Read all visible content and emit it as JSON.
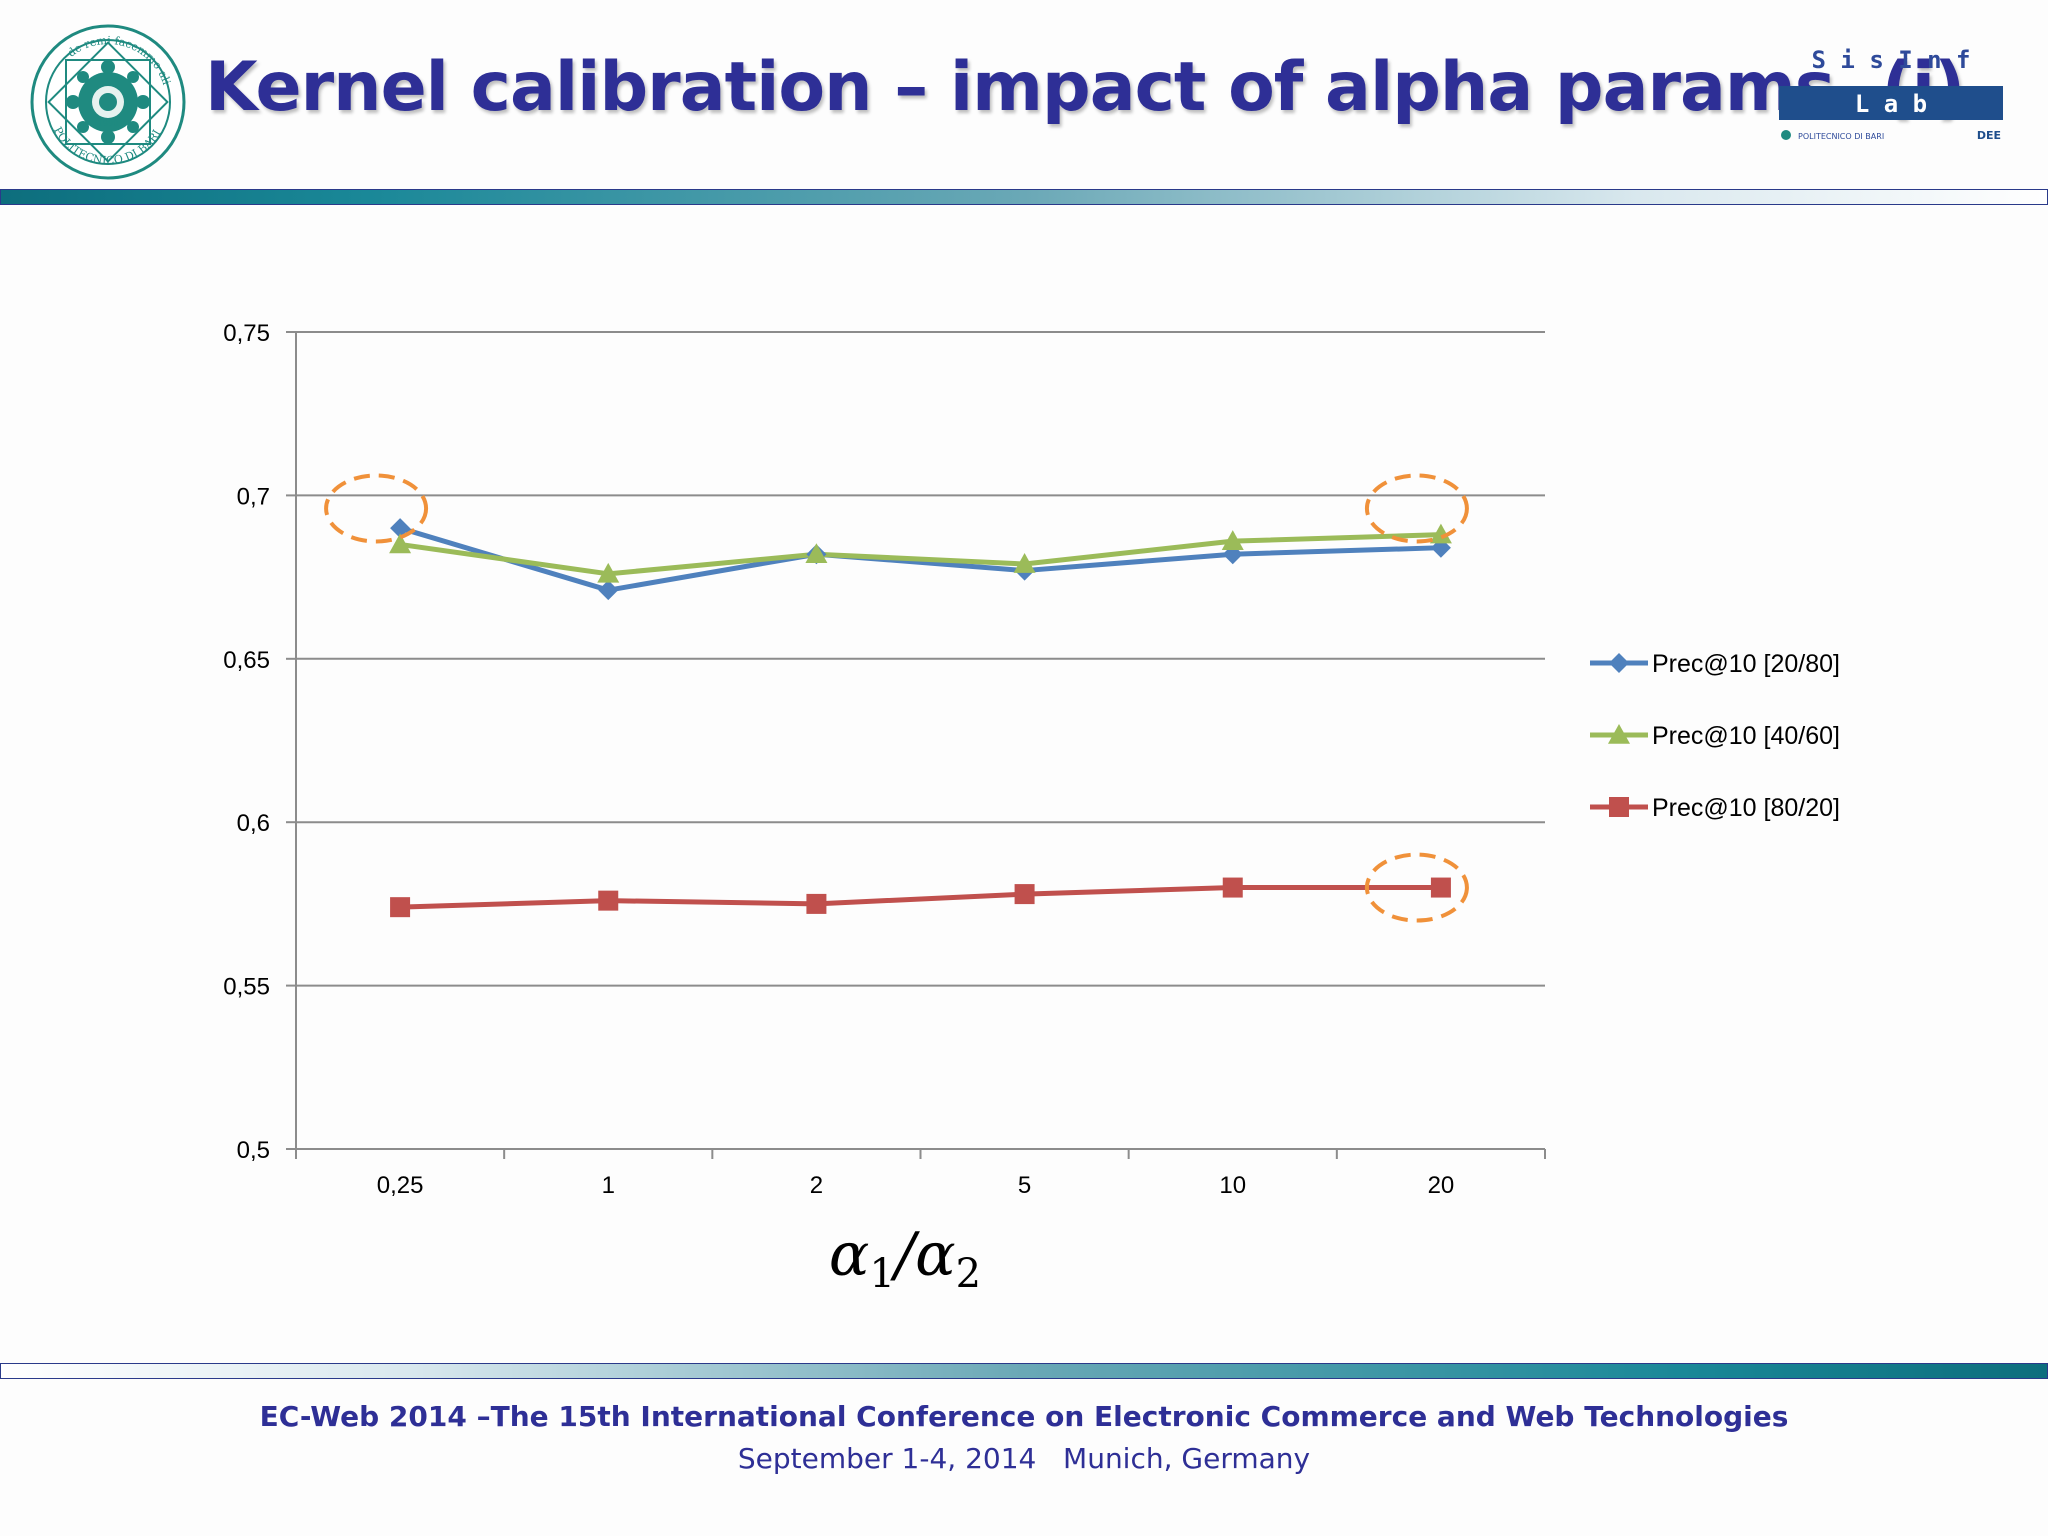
{
  "slide": {
    "title": "Kernel calibration – impact of alpha params. (i)",
    "footer_line1": "EC-Web 2014 –The 15th International Conference on Electronic Commerce and Web Technologies",
    "footer_line2": "September 1-4, 2014   Munich, Germany"
  },
  "logos": {
    "left": {
      "top_text": "de remi facemmo ali",
      "bottom_text": "POLITECNICO DI BARI",
      "year": "1990"
    },
    "right": {
      "line1": "S i s I n f",
      "line2": "L a b",
      "sub": "POLITECNICO DI BARI",
      "mark": "DEE"
    }
  },
  "colors": {
    "title": "#2e2f96",
    "series_blue": "#4f81bd",
    "series_green": "#9bbb59",
    "series_red": "#c0504d",
    "highlight": "#f0913a"
  },
  "chart_data": {
    "type": "line",
    "categories": [
      "0,25",
      "1",
      "2",
      "5",
      "10",
      "20"
    ],
    "xlabel": "α1/α2",
    "ylabel": "",
    "ylim": [
      0.5,
      0.75
    ],
    "yticks": [
      "0,5",
      "0,55",
      "0,6",
      "0,65",
      "0,7",
      "0,75"
    ],
    "grid": true,
    "legend": "right",
    "series": [
      {
        "name": "Prec@10 [20/80]",
        "marker": "diamond",
        "values": [
          0.69,
          0.671,
          0.682,
          0.677,
          0.682,
          0.684
        ]
      },
      {
        "name": "Prec@10 [40/60]",
        "marker": "triangle",
        "values": [
          0.685,
          0.676,
          0.682,
          0.679,
          0.686,
          0.688
        ]
      },
      {
        "name": "Prec@10 [80/20]",
        "marker": "square",
        "values": [
          0.574,
          0.576,
          0.575,
          0.578,
          0.58,
          0.58
        ]
      }
    ],
    "annotations": [
      "dashed ellipse at 0,25 around top series",
      "dashed ellipse at 20 around top series",
      "dashed ellipse at 20 around Prec@10 [80/20]"
    ]
  }
}
